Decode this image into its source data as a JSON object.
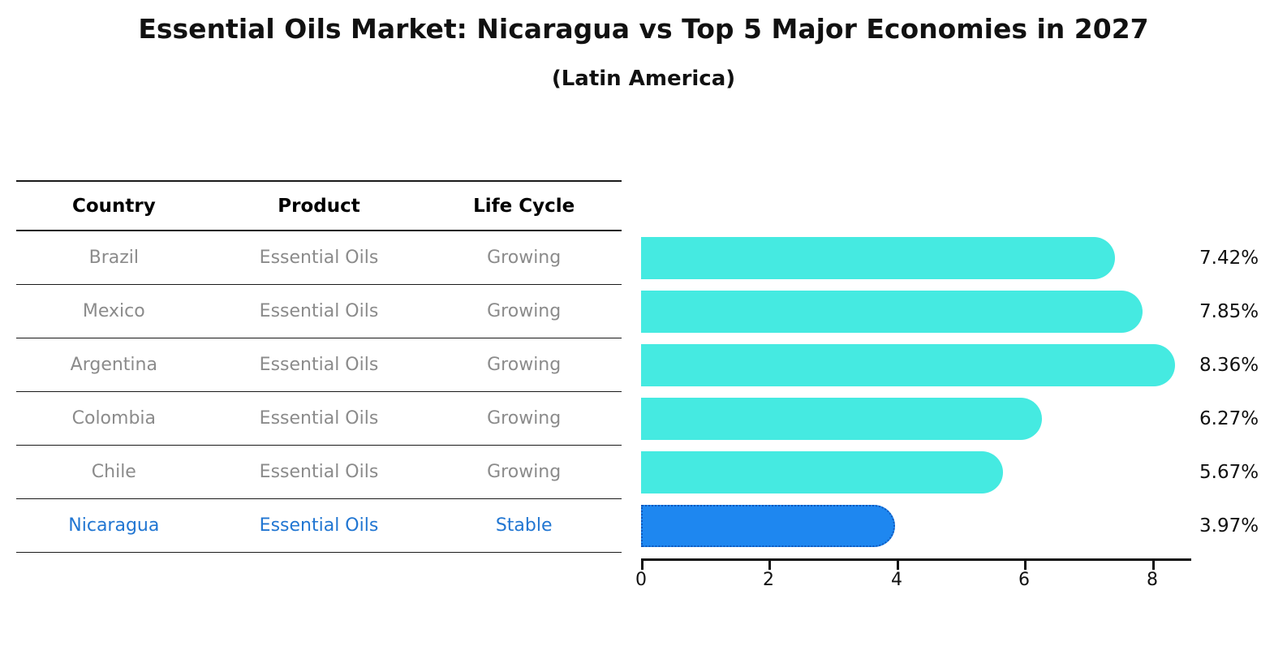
{
  "title": "Essential Oils Market: Nicaragua vs Top 5 Major Economies in 2027",
  "subtitle": "(Latin America)",
  "table": {
    "headers": [
      "Country",
      "Product",
      "Life Cycle"
    ],
    "rows": [
      {
        "country": "Brazil",
        "product": "Essential Oils",
        "life_cycle": "Growing",
        "highlight": false
      },
      {
        "country": "Mexico",
        "product": "Essential Oils",
        "life_cycle": "Growing",
        "highlight": false
      },
      {
        "country": "Argentina",
        "product": "Essential Oils",
        "life_cycle": "Growing",
        "highlight": false
      },
      {
        "country": "Colombia",
        "product": "Essential Oils",
        "life_cycle": "Growing",
        "highlight": false
      },
      {
        "country": "Chile",
        "product": "Essential Oils",
        "life_cycle": "Growing",
        "highlight": false
      },
      {
        "country": "Nicaragua",
        "product": "Essential Oils",
        "life_cycle": "Stable",
        "highlight": true
      }
    ]
  },
  "chart_data": {
    "type": "bar",
    "orientation": "horizontal",
    "title": "Essential Oils Market: Nicaragua vs Top 5 Major Economies in 2027",
    "subtitle": "(Latin America)",
    "categories": [
      "Brazil",
      "Mexico",
      "Argentina",
      "Colombia",
      "Chile",
      "Nicaragua"
    ],
    "values": [
      7.42,
      7.85,
      8.36,
      6.27,
      5.67,
      3.97
    ],
    "value_labels": [
      "7.42%",
      "7.85%",
      "8.36%",
      "6.27%",
      "5.67%",
      "3.97%"
    ],
    "highlight_index": 5,
    "x_ticks": [
      0,
      2,
      4,
      6,
      8
    ],
    "xlim": [
      0,
      8.6
    ],
    "grid": false,
    "legend": "none",
    "bar_color_default": "#45EAE1",
    "bar_color_highlight": "#1E87F0",
    "highlight_border_color": "#1058BC"
  },
  "colors": {
    "row_text": "#8b8b8b",
    "highlight_text": "#2176d2",
    "header_text": "#000000",
    "line": "#1a1a1a",
    "axis": "#111111"
  }
}
